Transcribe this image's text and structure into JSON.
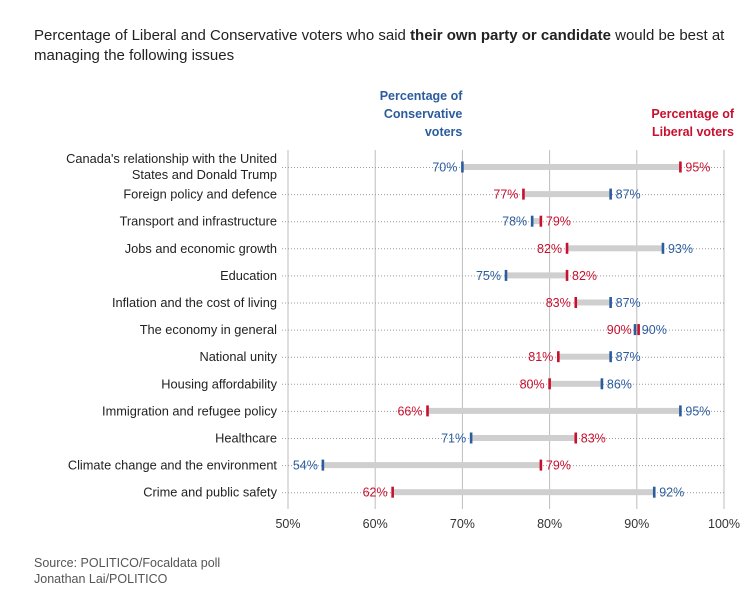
{
  "header": {
    "title_part1": "Percentage of Liberal and Conservative voters who said ",
    "title_bold": "their own party or candidate",
    "title_part2": " would be best at managing the following issues"
  },
  "legend": {
    "conservative": [
      "Percentage of",
      "Conservative",
      "voters"
    ],
    "liberal": [
      "Percentage of",
      "Liberal voters"
    ]
  },
  "footer": {
    "source": "Source: POLITICO/Focaldata poll",
    "credit": "Jonathan Lai/POLITICO"
  },
  "colors": {
    "conservative": "#2b5c9e",
    "liberal": "#c8102e",
    "connector": "#cfcfcf",
    "grid": "#bdbdbd",
    "dotted": "#9a9a9a"
  },
  "chart_data": {
    "type": "dumbbell",
    "xlim": [
      50,
      100
    ],
    "x_ticks": [
      "50%",
      "60%",
      "70%",
      "80%",
      "90%",
      "100%"
    ],
    "series": [
      {
        "name": "Percentage of Conservative voters",
        "key": "conservative"
      },
      {
        "name": "Percentage of Liberal voters",
        "key": "liberal"
      }
    ],
    "categories": [
      [
        "Canada's relationship with the United",
        "States and Donald Trump"
      ],
      [
        "Foreign policy and defence"
      ],
      [
        "Transport and infrastructure"
      ],
      [
        "Jobs and economic growth"
      ],
      [
        "Education"
      ],
      [
        "Inflation and the cost of living"
      ],
      [
        "The economy in general"
      ],
      [
        "National unity"
      ],
      [
        "Housing affordability"
      ],
      [
        "Immigration and refugee policy"
      ],
      [
        "Healthcare"
      ],
      [
        "Climate change and the environment"
      ],
      [
        "Crime and public safety"
      ]
    ],
    "conservative": [
      70,
      87,
      78,
      93,
      75,
      87,
      90,
      87,
      86,
      95,
      71,
      54,
      92
    ],
    "liberal": [
      95,
      77,
      79,
      82,
      82,
      83,
      90,
      81,
      80,
      66,
      83,
      79,
      62
    ],
    "conservative_labels": [
      "70%",
      "87%",
      "78%",
      "93%",
      "75%",
      "87%",
      "90%",
      "87%",
      "86%",
      "95%",
      "71%",
      "54%",
      "92%"
    ],
    "liberal_labels": [
      "95%",
      "77%",
      "79%",
      "82%",
      "82%",
      "83%",
      "90%",
      "81%",
      "80%",
      "66%",
      "83%",
      "79%",
      "62%"
    ]
  }
}
